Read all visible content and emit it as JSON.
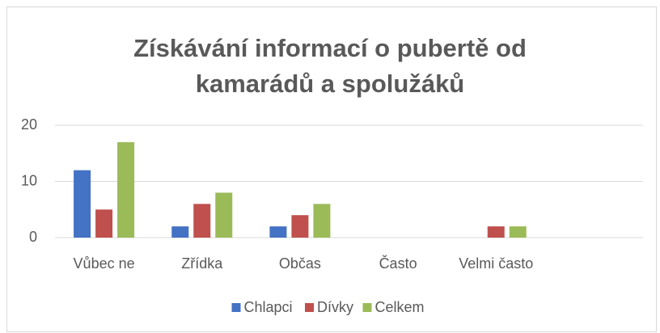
{
  "chart_data": {
    "type": "bar",
    "title": "Získávání informací o pubertě od kamarádů a spolužáků",
    "categories": [
      "Vůbec ne",
      "Zřídka",
      "Občas",
      "Často",
      "Velmi často",
      null
    ],
    "series": [
      {
        "name": "Chlapci",
        "color": "#4472c4",
        "values": [
          12,
          2,
          2,
          0,
          0,
          null
        ]
      },
      {
        "name": "Dívky",
        "color": "#c0504d",
        "values": [
          5,
          6,
          4,
          0,
          2,
          null
        ]
      },
      {
        "name": "Celkem",
        "color": "#9bbb59",
        "values": [
          17,
          8,
          6,
          0,
          2,
          null
        ]
      }
    ],
    "ylim": [
      0,
      20
    ],
    "yticks": [
      0,
      10,
      20
    ],
    "grid": true,
    "legend": "bottom"
  }
}
